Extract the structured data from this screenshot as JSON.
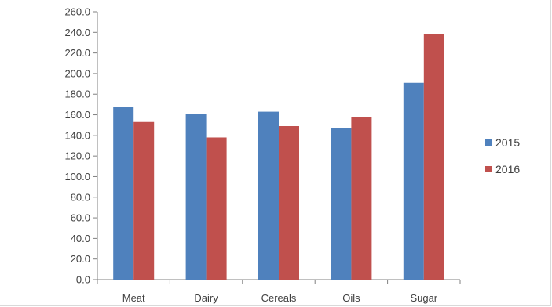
{
  "chart_data": {
    "type": "bar",
    "categories": [
      "Meat",
      "Dairy",
      "Cereals",
      "Oils",
      "Sugar"
    ],
    "series": [
      {
        "name": "2015",
        "color": "#4f81bd",
        "values": [
          168.0,
          161.0,
          163.0,
          147.0,
          191.0
        ]
      },
      {
        "name": "2016",
        "color": "#c0504d",
        "values": [
          153.0,
          138.0,
          149.0,
          158.0,
          238.0
        ]
      }
    ],
    "y_ticks": [
      "0.0",
      "20.0",
      "40.0",
      "60.0",
      "80.0",
      "100.0",
      "120.0",
      "140.0",
      "160.0",
      "180.0",
      "200.0",
      "220.0",
      "240.0",
      "260.0"
    ],
    "ylim": [
      0,
      260
    ],
    "grid": false,
    "legend_position": "right",
    "axis_color": "#808080"
  }
}
